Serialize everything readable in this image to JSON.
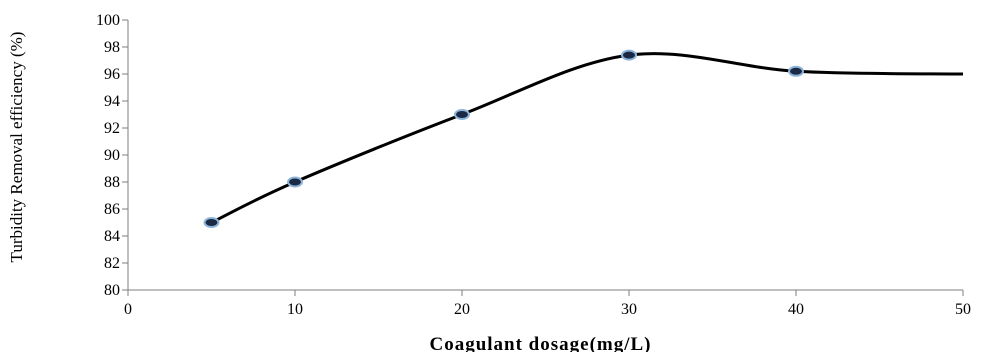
{
  "chart_data": {
    "type": "line",
    "title": "",
    "xlabel": "Coagulant dosage(mg/L)",
    "ylabel": "Turbidity Removal efficiency (%)",
    "xlim": [
      0,
      50
    ],
    "ylim": [
      80,
      100
    ],
    "xticks": [
      0,
      10,
      20,
      30,
      40,
      50
    ],
    "yticks": [
      80,
      82,
      84,
      86,
      88,
      90,
      92,
      94,
      96,
      98,
      100
    ],
    "grid": false,
    "smooth": true,
    "line_color": "#000000",
    "marker_fill": "#1a2a44",
    "marker_edge": "#8fb4d9",
    "series": [
      {
        "x": [
          5,
          10,
          20,
          30,
          40,
          50
        ],
        "y": [
          85.0,
          88.0,
          93.0,
          97.4,
          96.2,
          96.0
        ],
        "markers": [
          true,
          true,
          true,
          true,
          true,
          false
        ]
      }
    ]
  }
}
